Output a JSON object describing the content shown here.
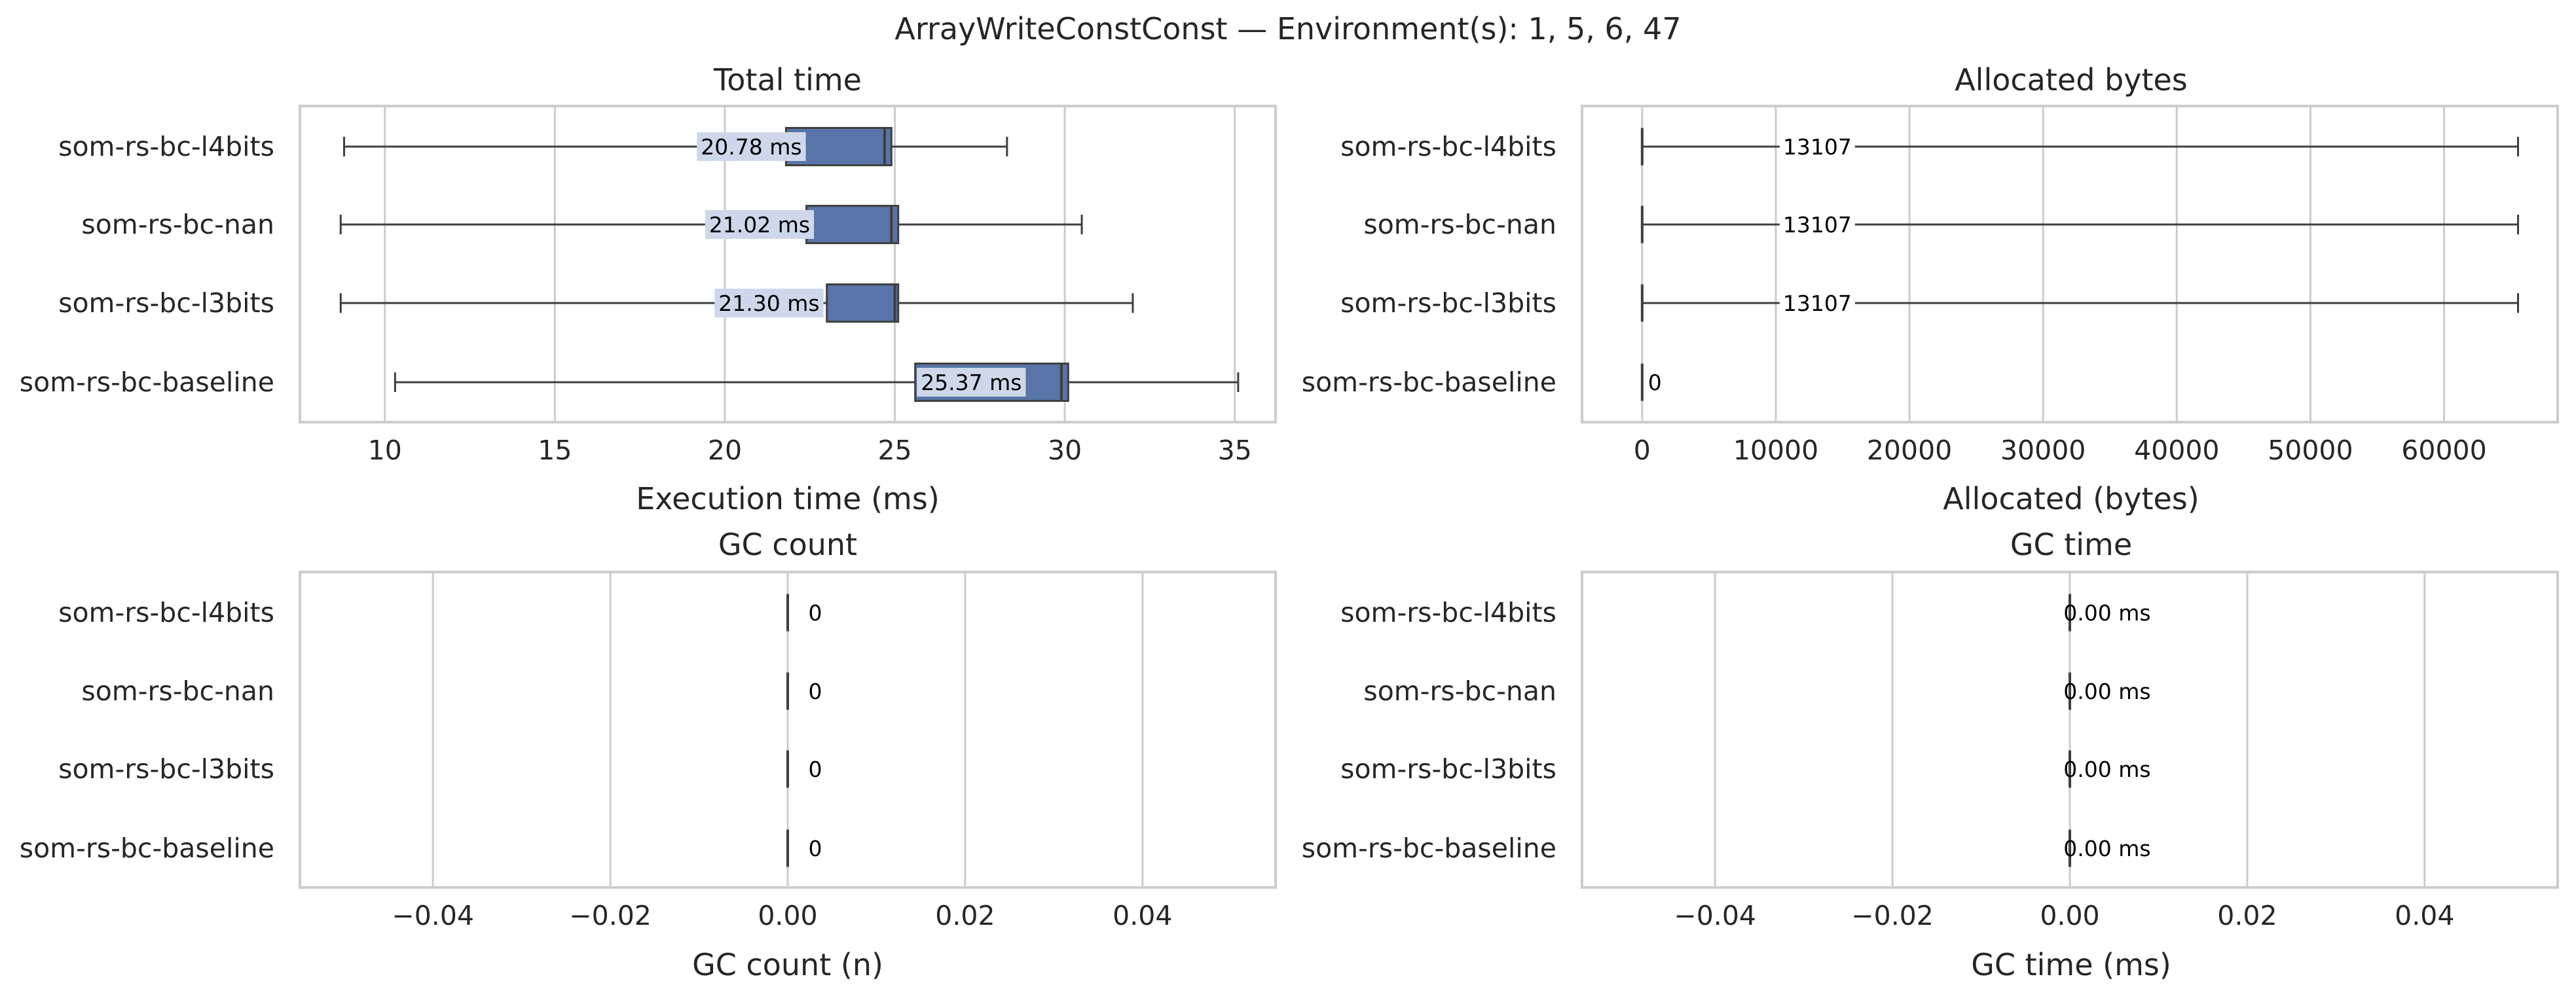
{
  "figure": {
    "suptitle": "ArrayWriteConstConst — Environment(s): 1, 5, 6, 47"
  },
  "colors": {
    "box": "#5874a8",
    "box_edge": "#3f3f3f",
    "label_bg": "#cfd8ea",
    "grid": "#cccccc",
    "frame": "#cccccc",
    "whisker": "#3f3f3f"
  },
  "chart_data": [
    {
      "id": "total-time",
      "type": "box",
      "orientation": "horizontal",
      "title": "Total time",
      "xlabel": "Execution time (ms)",
      "xlim": [
        7.5,
        36.2
      ],
      "xticks": [
        10,
        15,
        20,
        25,
        30,
        35
      ],
      "tick_labels": [
        "10",
        "15",
        "20",
        "25",
        "30",
        "35"
      ],
      "grid": true,
      "categories": [
        "som-rs-bc-l4bits",
        "som-rs-bc-nan",
        "som-rs-bc-l3bits",
        "som-rs-bc-baseline"
      ],
      "boxes": [
        {
          "whisker_low": 8.8,
          "q1": 21.8,
          "median": 24.7,
          "q3": 24.9,
          "whisker_high": 28.3,
          "label": "20.78 ms",
          "label_at": 20.78
        },
        {
          "whisker_low": 8.7,
          "q1": 22.4,
          "median": 24.9,
          "q3": 25.1,
          "whisker_high": 30.5,
          "label": "21.02 ms",
          "label_at": 21.02
        },
        {
          "whisker_low": 8.7,
          "q1": 23.0,
          "median": 25.0,
          "q3": 25.1,
          "whisker_high": 32.0,
          "label": "21.30 ms",
          "label_at": 21.3
        },
        {
          "whisker_low": 10.3,
          "q1": 25.6,
          "median": 29.9,
          "q3": 30.1,
          "whisker_high": 35.1,
          "label": "25.37 ms",
          "label_at": 27.25
        }
      ]
    },
    {
      "id": "allocated-bytes",
      "type": "box",
      "orientation": "horizontal",
      "title": "Allocated bytes",
      "xlabel": "Allocated (bytes)",
      "xlim": [
        -4500,
        68500
      ],
      "xticks": [
        0,
        10000,
        20000,
        30000,
        40000,
        50000,
        60000
      ],
      "tick_labels": [
        "0",
        "10000",
        "20000",
        "30000",
        "40000",
        "50000",
        "60000"
      ],
      "grid": true,
      "categories": [
        "som-rs-bc-l4bits",
        "som-rs-bc-nan",
        "som-rs-bc-l3bits",
        "som-rs-bc-baseline"
      ],
      "boxes": [
        {
          "whisker_low": 0,
          "q1": 0,
          "median": 0,
          "q3": 0,
          "whisker_high": 65536,
          "label": "13107",
          "label_at": 13107
        },
        {
          "whisker_low": 0,
          "q1": 0,
          "median": 0,
          "q3": 0,
          "whisker_high": 65536,
          "label": "13107",
          "label_at": 13107
        },
        {
          "whisker_low": 0,
          "q1": 0,
          "median": 0,
          "q3": 0,
          "whisker_high": 65536,
          "label": "13107",
          "label_at": 13107
        },
        {
          "whisker_low": 0,
          "q1": 0,
          "median": 0,
          "q3": 0,
          "whisker_high": 0,
          "label": "0",
          "label_at": 950
        }
      ]
    },
    {
      "id": "gc-count",
      "type": "box",
      "orientation": "horizontal",
      "title": "GC count",
      "xlabel": "GC count (n)",
      "xlim": [
        -0.055,
        0.055
      ],
      "xticks": [
        -0.04,
        -0.02,
        0.0,
        0.02,
        0.04
      ],
      "tick_labels": [
        "−0.04",
        "−0.02",
        "0.00",
        "0.02",
        "0.04"
      ],
      "grid": true,
      "categories": [
        "som-rs-bc-l4bits",
        "som-rs-bc-nan",
        "som-rs-bc-l3bits",
        "som-rs-bc-baseline"
      ],
      "boxes": [
        {
          "whisker_low": 0,
          "q1": 0,
          "median": 0,
          "q3": 0,
          "whisker_high": 0,
          "label": "0",
          "label_at": 0.0031
        },
        {
          "whisker_low": 0,
          "q1": 0,
          "median": 0,
          "q3": 0,
          "whisker_high": 0,
          "label": "0",
          "label_at": 0.0031
        },
        {
          "whisker_low": 0,
          "q1": 0,
          "median": 0,
          "q3": 0,
          "whisker_high": 0,
          "label": "0",
          "label_at": 0.0031
        },
        {
          "whisker_low": 0,
          "q1": 0,
          "median": 0,
          "q3": 0,
          "whisker_high": 0,
          "label": "0",
          "label_at": 0.0031
        }
      ]
    },
    {
      "id": "gc-time",
      "type": "box",
      "orientation": "horizontal",
      "title": "GC time",
      "xlabel": "GC time (ms)",
      "xlim": [
        -0.055,
        0.055
      ],
      "xticks": [
        -0.04,
        -0.02,
        0.0,
        0.02,
        0.04
      ],
      "tick_labels": [
        "−0.04",
        "−0.02",
        "0.00",
        "0.02",
        "0.04"
      ],
      "grid": true,
      "categories": [
        "som-rs-bc-l4bits",
        "som-rs-bc-nan",
        "som-rs-bc-l3bits",
        "som-rs-bc-baseline"
      ],
      "boxes": [
        {
          "whisker_low": 0,
          "q1": 0,
          "median": 0,
          "q3": 0,
          "whisker_high": 0,
          "label": "0.00 ms",
          "label_at": 0.0042
        },
        {
          "whisker_low": 0,
          "q1": 0,
          "median": 0,
          "q3": 0,
          "whisker_high": 0,
          "label": "0.00 ms",
          "label_at": 0.0042
        },
        {
          "whisker_low": 0,
          "q1": 0,
          "median": 0,
          "q3": 0,
          "whisker_high": 0,
          "label": "0.00 ms",
          "label_at": 0.0042
        },
        {
          "whisker_low": 0,
          "q1": 0,
          "median": 0,
          "q3": 0,
          "whisker_high": 0,
          "label": "0.00 ms",
          "label_at": 0.0042
        }
      ]
    }
  ]
}
